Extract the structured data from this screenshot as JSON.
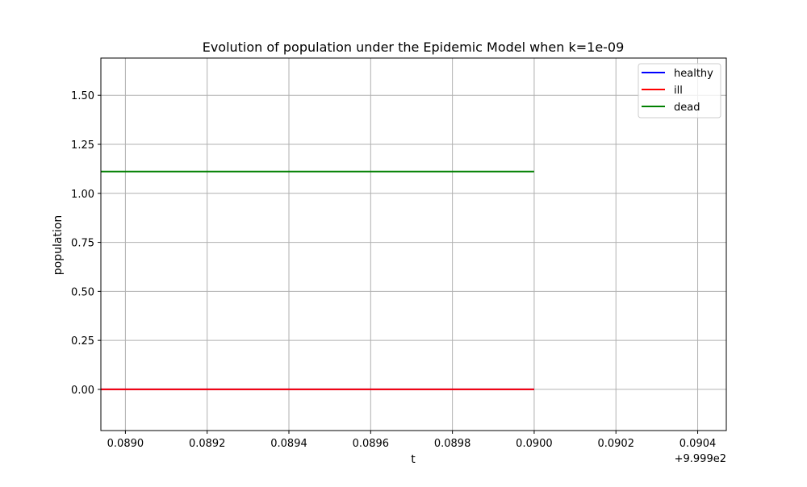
{
  "chart_data": {
    "type": "line",
    "title": "Evolution of population under the Epidemic Model when k=1e-09",
    "xlabel": "t",
    "ylabel": "population",
    "x_offset_label": "+9.999e2",
    "xlim": [
      0.08894,
      0.09047
    ],
    "ylim": [
      -0.21,
      1.69
    ],
    "x_ticks": [
      0.089,
      0.0892,
      0.0894,
      0.0896,
      0.0898,
      0.09,
      0.0902,
      0.0904
    ],
    "x_tick_labels": [
      "0.0890",
      "0.0892",
      "0.0894",
      "0.0896",
      "0.0898",
      "0.0900",
      "0.0902",
      "0.0904"
    ],
    "y_ticks": [
      0.0,
      0.25,
      0.5,
      0.75,
      1.0,
      1.25,
      1.5
    ],
    "y_tick_labels": [
      "0.00",
      "0.25",
      "0.50",
      "0.75",
      "1.00",
      "1.25",
      "1.50"
    ],
    "grid": true,
    "legend_position": "top-right",
    "series": [
      {
        "name": "healthy",
        "color": "#0000ff",
        "x": [
          0.08894,
          0.09
        ],
        "y": [
          0.0,
          0.0
        ]
      },
      {
        "name": "ill",
        "color": "#ff0000",
        "x": [
          0.08894,
          0.09
        ],
        "y": [
          0.0,
          0.0
        ]
      },
      {
        "name": "dead",
        "color": "#008000",
        "x": [
          0.08894,
          0.09
        ],
        "y": [
          1.111,
          1.111
        ]
      }
    ]
  }
}
